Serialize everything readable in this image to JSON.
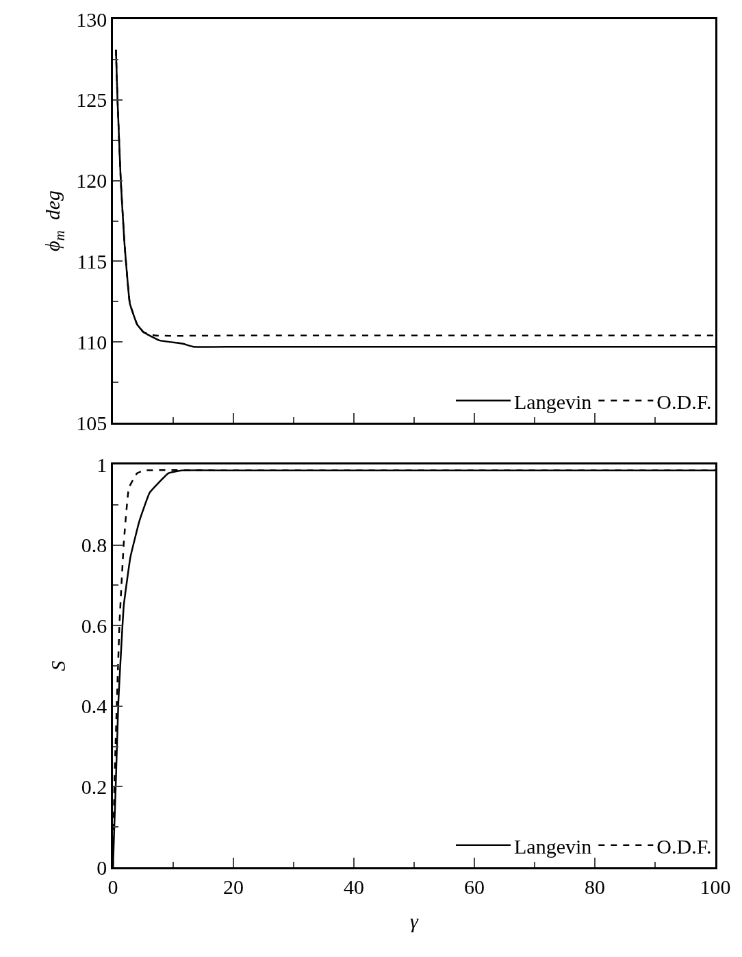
{
  "chart_data": [
    {
      "type": "line",
      "ylabel": "ϕ$_{m}$  deg",
      "xlim": [
        0,
        100
      ],
      "ylim": [
        105,
        130
      ],
      "xticks": [
        0,
        {
          "value": 10,
          "label": null
        },
        20,
        {
          "value": 30,
          "label": null
        },
        40,
        {
          "value": 50,
          "label": null
        },
        60,
        {
          "value": 70,
          "label": null
        },
        80,
        {
          "value": 90,
          "label": null
        },
        100
      ],
      "yticks": [
        105,
        {
          "value": 107.5,
          "label": null
        },
        110,
        {
          "value": 112.5,
          "label": null
        },
        115,
        {
          "value": 117.5,
          "label": null
        },
        120,
        {
          "value": 122.5,
          "label": null
        },
        125,
        {
          "value": 127.5,
          "label": null
        },
        130
      ],
      "tick_labels": "y",
      "legend": "bottom right",
      "series": [
        {
          "name": "Langevin",
          "color": "#000000",
          "line_style": "solid",
          "x": [
            0.5,
            0.75,
            1.3,
            1.9,
            2.8,
            4.0,
            5.1,
            7.7,
            11.5,
            13.4,
            20,
            30,
            40,
            50,
            60,
            70,
            80,
            90,
            100
          ],
          "values": [
            128.1,
            125.1,
            120.0,
            116.2,
            112.4,
            111.1,
            110.6,
            110.1,
            109.9,
            109.7,
            109.7,
            109.7,
            109.7,
            109.7,
            109.7,
            109.7,
            109.7,
            109.7,
            109.7
          ]
        },
        {
          "name": "O.D.F.",
          "color": "#000000",
          "line_style": "dashed",
          "x": [
            0.5,
            0.75,
            1.3,
            1.9,
            2.8,
            4.0,
            5.1,
            7.0,
            20,
            40,
            60,
            80,
            100
          ],
          "values": [
            128.1,
            125.1,
            120.0,
            116.2,
            112.4,
            111.1,
            110.6,
            110.4,
            110.4,
            110.4,
            110.4,
            110.4,
            110.4
          ]
        }
      ]
    },
    {
      "type": "line",
      "xlabel": "γ",
      "ylabel": "S",
      "xlim": [
        0,
        100
      ],
      "ylim": [
        0,
        1
      ],
      "xticks": [
        0,
        {
          "value": 10,
          "label": null
        },
        20,
        {
          "value": 30,
          "label": null
        },
        40,
        {
          "value": 50,
          "label": null
        },
        60,
        {
          "value": 70,
          "label": null
        },
        80,
        {
          "value": 90,
          "label": null
        },
        100
      ],
      "yticks": [
        0,
        {
          "value": 0.1,
          "label": null
        },
        0.2,
        {
          "value": 0.3,
          "label": null
        },
        0.4,
        {
          "value": 0.5,
          "label": null
        },
        0.6,
        {
          "value": 0.7,
          "label": null
        },
        0.8,
        {
          "value": 0.9,
          "label": null
        },
        1
      ],
      "legend": "bottom right",
      "series": [
        {
          "name": "Langevin",
          "color": "#000000",
          "line_style": "solid",
          "x": [
            0,
            0.48,
            0.9,
            1.8,
            2.9,
            4.4,
            6.1,
            9.2,
            11.4,
            20,
            40,
            60,
            80,
            100
          ],
          "values": [
            0,
            0.21,
            0.41,
            0.65,
            0.77,
            0.86,
            0.93,
            0.978,
            0.985,
            0.985,
            0.985,
            0.985,
            0.985,
            0.985
          ]
        },
        {
          "name": "O.D.F.",
          "color": "#000000",
          "line_style": "dashed",
          "x": [
            0,
            0.25,
            0.65,
            1.1,
            1.8,
            2.65,
            4.0,
            5.2,
            20,
            40,
            60,
            80,
            100
          ],
          "values": [
            0,
            0.21,
            0.41,
            0.61,
            0.805,
            0.942,
            0.978,
            0.985,
            0.985,
            0.985,
            0.985,
            0.985,
            0.985
          ]
        }
      ]
    }
  ]
}
